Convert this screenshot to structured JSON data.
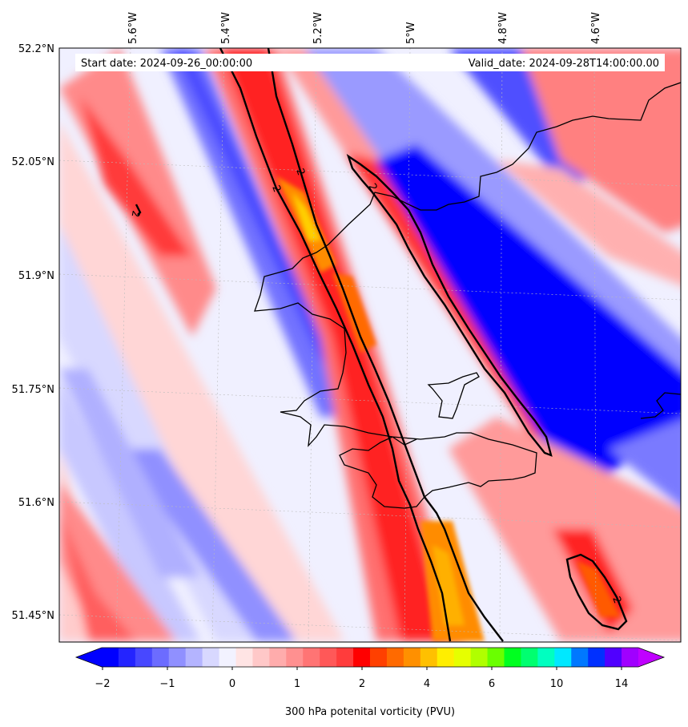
{
  "map": {
    "start_date": "Start date: 2024-09-26_00:00:00",
    "valid_date": "Valid_date: 2024-09-28T14:00:00.00",
    "lon_labels": [
      "5.6°W",
      "5.4°W",
      "5.2°W",
      "5°W",
      "4.8°W",
      "4.6°W"
    ],
    "lat_labels": [
      "52.2°N",
      "52.05°N",
      "51.9°N",
      "51.75°N",
      "51.6°N",
      "51.45°N"
    ],
    "contour_label": "2"
  },
  "colorbar": {
    "title": "300 hPa potenital vorticity (PVU)",
    "ticks": [
      "−2",
      "−1",
      "0",
      "1",
      "2",
      "4",
      "6",
      "10",
      "14"
    ],
    "colors": [
      "#0000ff",
      "#2424ff",
      "#4848ff",
      "#6c6cff",
      "#9090ff",
      "#b4b4ff",
      "#d8d8ff",
      "#f2f2ff",
      "#ffe4e4",
      "#ffc8c8",
      "#ffacac",
      "#ff9090",
      "#ff7474",
      "#ff5858",
      "#ff3c3c",
      "#ff0000",
      "#ff4000",
      "#ff6a00",
      "#ff9000",
      "#ffc000",
      "#ffee00",
      "#e6ff00",
      "#b0ff00",
      "#6aff00",
      "#00ff20",
      "#00ff70",
      "#00ffc0",
      "#00e8ff",
      "#0078ff",
      "#0030ff",
      "#5000ff",
      "#a000ff"
    ],
    "under_color": "#0000ff",
    "over_color": "#c000ff"
  }
}
